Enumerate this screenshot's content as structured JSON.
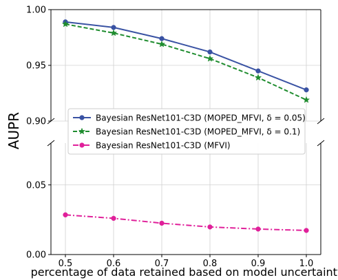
{
  "chart_data": {
    "type": "line",
    "title": "",
    "xlabel": "percentage of data retained based on model uncertainty",
    "ylabel": "AUPR",
    "x": [
      0.5,
      0.6,
      0.7,
      0.8,
      0.9,
      1.0
    ],
    "x_tick_labels": [
      "0.5",
      "0.6",
      "0.7",
      "0.8",
      "0.9",
      "1.0"
    ],
    "xlim": [
      0.47,
      1.03
    ],
    "broken_y_axis": true,
    "panels": [
      {
        "position": "top",
        "ylim": [
          0.9,
          1.0
        ],
        "y_ticks": [
          0.9,
          0.95,
          1.0
        ],
        "y_tick_labels": [
          "0.90",
          "0.95",
          "1.00"
        ]
      },
      {
        "position": "bottom",
        "ylim": [
          0.0,
          0.08
        ],
        "y_ticks": [
          0.0,
          0.05
        ],
        "y_tick_labels": [
          "0.00",
          "0.05"
        ]
      }
    ],
    "grid": true,
    "legend_position": "center-left",
    "series": [
      {
        "name": "Bayesian ResNet101-C3D (MOPED_MFVI, δ = 0.05)",
        "values": [
          0.989,
          0.984,
          0.974,
          0.962,
          0.945,
          0.928
        ],
        "color": "#3952a3",
        "line_style": "solid",
        "marker": "circle",
        "panel": "top"
      },
      {
        "name": "Bayesian ResNet101-C3D (MOPED_MFVI, δ = 0.1)",
        "values": [
          0.987,
          0.979,
          0.969,
          0.956,
          0.939,
          0.919
        ],
        "color": "#1e8c2e",
        "line_style": "dashed",
        "marker": "star",
        "panel": "top"
      },
      {
        "name": "Bayesian ResNet101-C3D (MFVI)",
        "values": [
          0.0285,
          0.026,
          0.0225,
          0.0198,
          0.0183,
          0.0173
        ],
        "color": "#e0209a",
        "line_style": "dashdot",
        "marker": "circle",
        "panel": "bottom"
      }
    ]
  }
}
